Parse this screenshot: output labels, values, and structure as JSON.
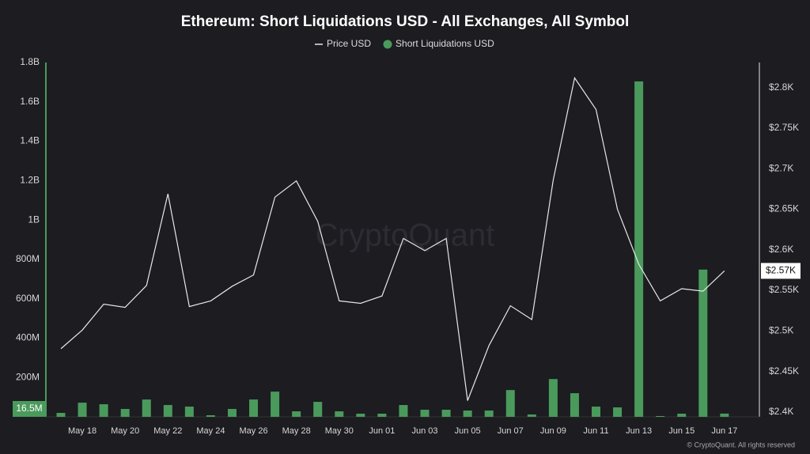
{
  "chart_data": {
    "type": "bar_line",
    "title": "Ethereum: Short Liquidations USD - All Exchanges, All Symbol",
    "watermark": "CryptoQuant",
    "footer": "© CryptoQuant. All rights reserved",
    "categories": [
      null,
      "May 18",
      null,
      "May 20",
      null,
      "May 22",
      null,
      "May 24",
      null,
      "May 26",
      null,
      "May 28",
      null,
      "May 30",
      null,
      "Jun 01",
      null,
      "Jun 03",
      null,
      "Jun 05",
      null,
      "Jun 07",
      null,
      "Jun 09",
      null,
      "Jun 11",
      null,
      "Jun 13",
      null,
      "Jun 15",
      null,
      "Jun 17"
    ],
    "series": [
      {
        "name": "Price USD",
        "type": "line",
        "axis": "y2",
        "color": "#e8e8e8",
        "values": [
          2478,
          2501,
          2533,
          2529,
          2556,
          2669,
          2530,
          2537,
          2555,
          2569,
          2665,
          2685,
          2635,
          2537,
          2534,
          2543,
          2614,
          2599,
          2614,
          2414,
          2482,
          2531,
          2514,
          2686,
          2812,
          2773,
          2650,
          2582,
          2537,
          2552,
          2549,
          2574
        ],
        "value_labels": [
          null,
          null,
          null,
          null,
          null,
          null,
          null,
          null,
          null,
          null,
          null,
          null,
          null,
          null,
          null,
          null,
          null,
          null,
          null,
          null,
          null,
          null,
          null,
          null,
          null,
          null,
          null,
          null,
          null,
          null,
          null,
          "$2.57K"
        ]
      },
      {
        "name": "Short Liquidations USD",
        "type": "bar",
        "axis": "y",
        "color": "#4a9a5c",
        "values": [
          20000000,
          72000000,
          64000000,
          40000000,
          88000000,
          60000000,
          52000000,
          8000000,
          40000000,
          88000000,
          128000000,
          28000000,
          76000000,
          28000000,
          16000000,
          16000000,
          60000000,
          36000000,
          36000000,
          32000000,
          32000000,
          136000000,
          12000000,
          192000000,
          120000000,
          52000000,
          48000000,
          1704000000,
          4000000,
          16000000,
          748000000,
          16500000
        ],
        "value_labels": [
          null,
          null,
          null,
          null,
          null,
          null,
          null,
          null,
          null,
          null,
          null,
          null,
          null,
          null,
          null,
          null,
          null,
          null,
          null,
          null,
          null,
          null,
          null,
          null,
          null,
          null,
          null,
          null,
          null,
          null,
          null,
          "16.5M"
        ]
      }
    ],
    "ylim": [
      0,
      1800000000
    ],
    "yticks": [
      {
        "value": 200000000,
        "label": "200M"
      },
      {
        "value": 400000000,
        "label": "400M"
      },
      {
        "value": 600000000,
        "label": "600M"
      },
      {
        "value": 800000000,
        "label": "800M"
      },
      {
        "value": 1000000000,
        "label": "1B"
      },
      {
        "value": 1200000000,
        "label": "1.2B"
      },
      {
        "value": 1400000000,
        "label": "1.4B"
      },
      {
        "value": 1600000000,
        "label": "1.6B"
      },
      {
        "value": 1800000000,
        "label": "1.8B"
      }
    ],
    "y2lim": [
      2394,
      2831
    ],
    "y2ticks": [
      {
        "value": 2400,
        "label": "$2.4K"
      },
      {
        "value": 2450,
        "label": "$2.45K"
      },
      {
        "value": 2500,
        "label": "$2.5K"
      },
      {
        "value": 2550,
        "label": "$2.55K"
      },
      {
        "value": 2600,
        "label": "$2.6K"
      },
      {
        "value": 2650,
        "label": "$2.65K"
      },
      {
        "value": 2700,
        "label": "$2.7K"
      },
      {
        "value": 2750,
        "label": "$2.75K"
      },
      {
        "value": 2800,
        "label": "$2.8K"
      }
    ],
    "grid": false,
    "legend": "top"
  }
}
